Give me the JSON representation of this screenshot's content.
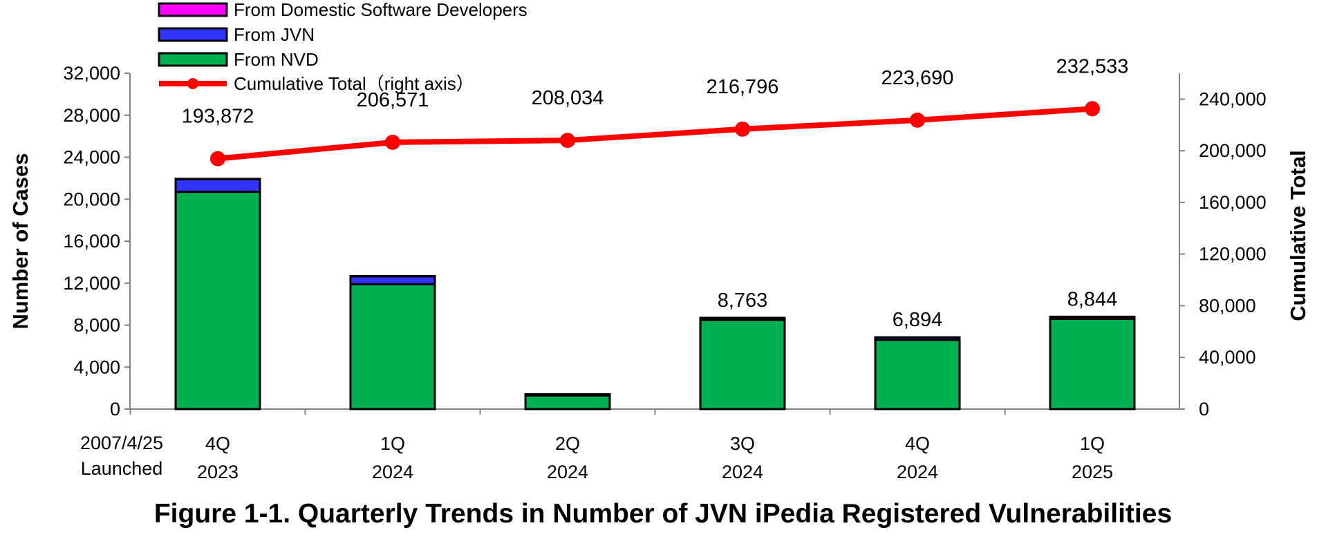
{
  "chart_data": {
    "type": "bar",
    "title": "Figure 1-1. Quarterly Trends in Number of JVN iPedia Registered Vulnerabilities",
    "ylabel": "Number of Cases",
    "y2label": "Cumulative Total",
    "ylim": [
      0,
      32000
    ],
    "y2lim": [
      0,
      260000
    ],
    "yticks": [
      "0",
      "4,000",
      "8,000",
      "12,000",
      "16,000",
      "20,000",
      "24,000",
      "28,000",
      "32,000"
    ],
    "y2ticks": [
      "0",
      "40,000",
      "80,000",
      "120,000",
      "160,000",
      "200,000",
      "240,000"
    ],
    "launch_note": [
      "2007/4/25",
      "Launched"
    ],
    "categories": [
      [
        "4Q",
        "2023"
      ],
      [
        "1Q",
        "2024"
      ],
      [
        "2Q",
        "2024"
      ],
      [
        "3Q",
        "2024"
      ],
      [
        "4Q",
        "2024"
      ],
      [
        "1Q",
        "2025"
      ]
    ],
    "series": [
      {
        "name": "From NVD",
        "color": "#00b050",
        "values": [
          20700,
          11900,
          1300,
          8500,
          6600,
          8600
        ]
      },
      {
        "name": "From JVN",
        "color": "#3333ff",
        "values": [
          1200,
          750,
          100,
          180,
          230,
          180
        ]
      },
      {
        "name": "From Domestic Software Developers",
        "color": "#ff00ff",
        "values": [
          40,
          30,
          10,
          20,
          10,
          20
        ]
      }
    ],
    "cumulative": {
      "name": "Cumulative Total（right axis）",
      "color": "#ff0000",
      "values": [
        193872,
        206571,
        208034,
        216796,
        223690,
        232533
      ],
      "labels": [
        "193,872",
        "206,571",
        "208,034",
        "216,796",
        "223,690",
        "232,533"
      ]
    },
    "bar_labels": [
      "",
      "",
      "",
      "8,763",
      "6,894",
      "8,844"
    ],
    "legend_order": [
      "From Domestic Software Developers",
      "From JVN",
      "From NVD",
      "Cumulative Total（right axis）"
    ],
    "legend_position": "top-left",
    "grid": false
  }
}
